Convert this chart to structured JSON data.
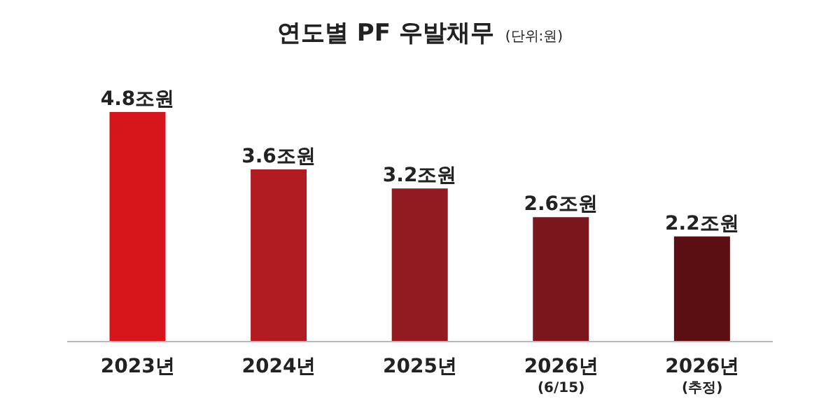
{
  "chart_data": {
    "type": "bar",
    "title": "연도별 PF 우발채무",
    "subtitle": "(단위:원)",
    "categories": [
      "2023년",
      "2024년",
      "2025년",
      "2026년\n(6/15)",
      "2026년\n(추정)"
    ],
    "values": [
      4.8,
      3.6,
      3.2,
      2.6,
      2.2
    ],
    "value_labels": [
      "4.8조원",
      "3.6조원",
      "3.2조원",
      "2.6조원",
      "2.2조원"
    ],
    "colors": [
      "#d7161c",
      "#b01c22",
      "#921b21",
      "#7a161c",
      "#5c0f13"
    ],
    "relative": false,
    "grid": false,
    "legend": false
  }
}
